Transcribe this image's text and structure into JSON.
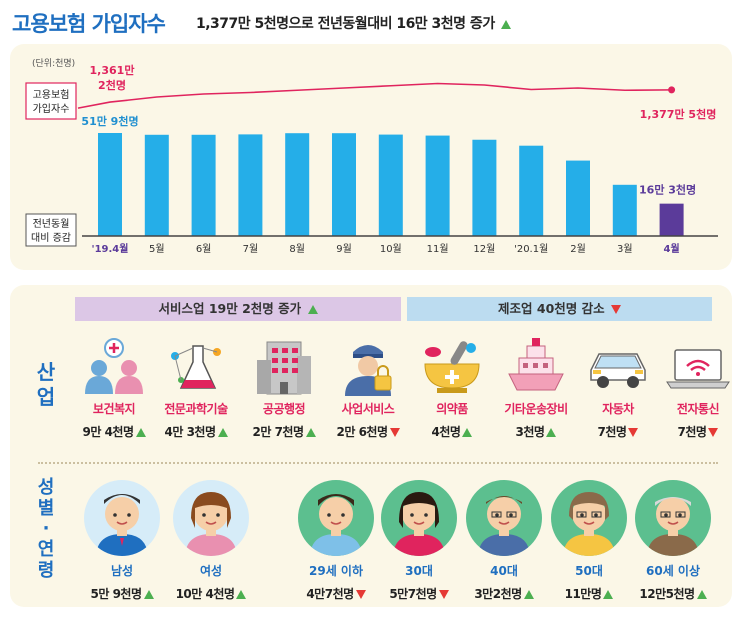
{
  "header": {
    "title": "고용보험 가입자수",
    "subtitle": "1,377만 5천명으로 전년동월대비 16만 3천명 증가"
  },
  "chart_data": {
    "type": "bar",
    "unit_label": "(단위:천명)",
    "line_series_label": [
      "고용보험",
      "가입자수"
    ],
    "bar_series_label": [
      "전년동월",
      "대비 증감"
    ],
    "categories": [
      "'19.4월",
      "5월",
      "6월",
      "7월",
      "8월",
      "9월",
      "10월",
      "11월",
      "12월",
      "'20.1월",
      "2월",
      "3월",
      "4월"
    ],
    "bar_values": [
      519,
      510,
      510,
      512,
      518,
      518,
      511,
      506,
      485,
      455,
      380,
      258,
      163
    ],
    "line_values": [
      13612,
      13680,
      13720,
      13740,
      13770,
      13800,
      13830,
      13860,
      13840,
      13780,
      13800,
      13770,
      13775
    ],
    "first_bar_label": "51만 9천명",
    "last_bar_label": "16만 3천명",
    "first_line_label": [
      "1,361만",
      "2천명"
    ],
    "last_line_label": "1,377만 5천명",
    "bar_color": "#25aee8",
    "bar_color_highlight": "#5b3b9a",
    "line_color": "#e0245e"
  },
  "industry": {
    "side_label": [
      "산",
      "업"
    ],
    "service_band": "서비스업 19만 2천명 증가",
    "manufacturing_band": "제조업 40천명 감소",
    "items": [
      {
        "label": "보건복지",
        "value": "9만 4천명",
        "dir": "up",
        "icon": "healthcare-icon"
      },
      {
        "label": "전문과학기술",
        "value": "4만 3천명",
        "dir": "up",
        "icon": "science-icon"
      },
      {
        "label": "공공행정",
        "value": "2만 7천명",
        "dir": "up",
        "icon": "building-icon"
      },
      {
        "label": "사업서비스",
        "value": "2만 6천명",
        "dir": "down",
        "icon": "security-guard-icon"
      },
      {
        "label": "의약품",
        "value": "4천명",
        "dir": "up",
        "icon": "pharmacy-icon"
      },
      {
        "label": "기타운송장비",
        "value": "3천명",
        "dir": "up",
        "icon": "ship-icon"
      },
      {
        "label": "자동차",
        "value": "7천명",
        "dir": "down",
        "icon": "car-icon"
      },
      {
        "label": "전자통신",
        "value": "7천명",
        "dir": "down",
        "icon": "laptop-wifi-icon"
      }
    ]
  },
  "demographics": {
    "side_label": [
      "성",
      "별",
      "·",
      "연",
      "령"
    ],
    "items": [
      {
        "label": "남성",
        "value": "5만 9천명",
        "dir": "up",
        "icon": "man-icon",
        "bg": "#d6ecf8"
      },
      {
        "label": "여성",
        "value": "10만 4천명",
        "dir": "up",
        "icon": "woman-icon",
        "bg": "#d6ecf8"
      },
      {
        "label": "29세 이하",
        "value": "4만7천명",
        "dir": "down",
        "icon": "young-man-icon",
        "bg": "#5cbf8f"
      },
      {
        "label": "30대",
        "value": "5만7천명",
        "dir": "down",
        "icon": "young-woman-icon",
        "bg": "#5cbf8f"
      },
      {
        "label": "40대",
        "value": "3만2천명",
        "dir": "up",
        "icon": "middle-aged-man-icon",
        "bg": "#5cbf8f"
      },
      {
        "label": "50대",
        "value": "11만명",
        "dir": "up",
        "icon": "middle-aged-woman-icon",
        "bg": "#5cbf8f"
      },
      {
        "label": "60세 이상",
        "value": "12만5천명",
        "dir": "up",
        "icon": "senior-man-icon",
        "bg": "#5cbf8f"
      }
    ]
  }
}
